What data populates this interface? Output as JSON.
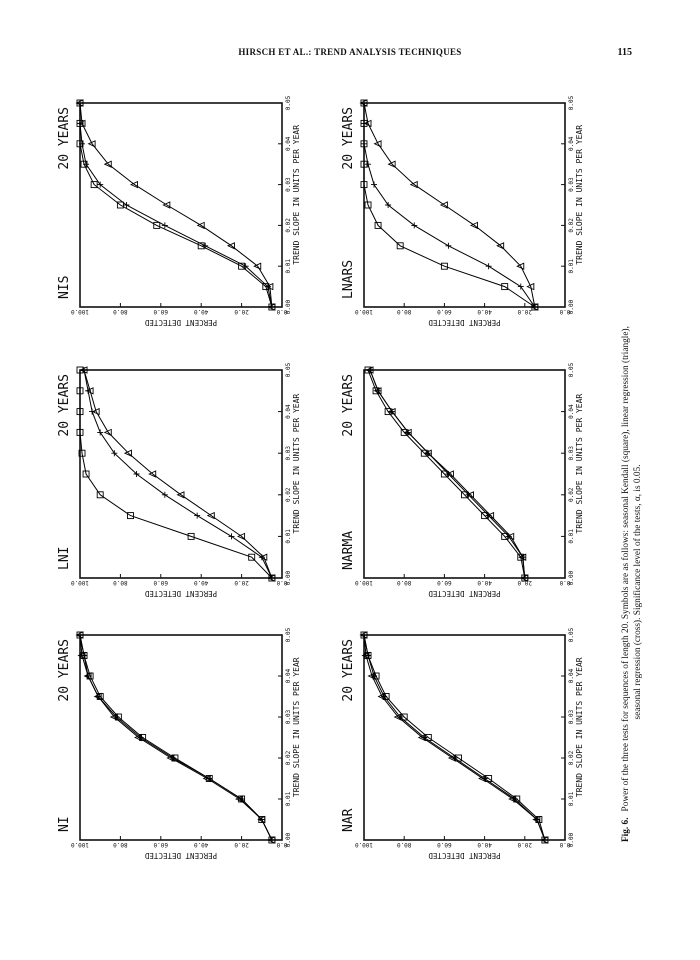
{
  "header": {
    "running_title": "HIRSCH ET AL.: TREND ANALYSIS TECHNIQUES",
    "page_number": "115"
  },
  "caption": {
    "label": "Fig. 6.",
    "lines": [
      "Power of the three tests for sequences of length 20. Symbols are as follows: seasonal Kendall (square), linear regression (triangle),",
      "seasonal regression (cross). Significance level of the tests, α, is 0.05."
    ]
  },
  "chart_data": [
    {
      "type": "line",
      "title": "NIS",
      "subtitle": "20 YEARS",
      "xlabel": "TREND SLOPE IN UNITS PER YEAR",
      "ylabel": "PERCENT DETECTED",
      "x": [
        0,
        0.005,
        0.01,
        0.015,
        0.02,
        0.025,
        0.03,
        0.035,
        0.04,
        0.045,
        0.05
      ],
      "xlim": [
        0,
        0.05
      ],
      "ylim": [
        0,
        100
      ],
      "xticks": [
        {
          "value": 0,
          "label": "0.00"
        },
        0.01,
        0.02,
        0.03,
        0.04,
        0.05
      ],
      "yticks": [
        {
          "value": 0,
          "label": "0.0"
        },
        {
          "value": 20,
          "label": "20.0"
        },
        {
          "value": 40,
          "label": "40.0"
        },
        {
          "value": 60,
          "label": "60.0"
        },
        {
          "value": 80,
          "label": "80.0"
        },
        {
          "value": 100,
          "label": "100.0"
        }
      ],
      "series": [
        {
          "marker": "square",
          "color": "#000000",
          "values": [
            5,
            8,
            20,
            40,
            62,
            80,
            93,
            98,
            100,
            100,
            100
          ]
        },
        {
          "marker": "triangle",
          "color": "#000000",
          "values": [
            5,
            6,
            12,
            25,
            40,
            57,
            73,
            86,
            94,
            99,
            100
          ]
        },
        {
          "marker": "cross",
          "color": "#000000",
          "values": [
            5,
            7,
            18,
            38,
            58,
            77,
            90,
            97,
            99,
            100,
            100
          ]
        }
      ]
    },
    {
      "type": "line",
      "title": "LNARS",
      "subtitle": "20 YEARS",
      "xlabel": "TREND SLOPE IN UNITS PER YEAR",
      "ylabel": "PERCENT DETECTED",
      "x": [
        0,
        0.005,
        0.01,
        0.015,
        0.02,
        0.025,
        0.03,
        0.035,
        0.04,
        0.045,
        0.05
      ],
      "xlim": [
        0,
        0.05
      ],
      "ylim": [
        0,
        100
      ],
      "xticks": [
        {
          "value": 0,
          "label": "0.00"
        },
        0.01,
        0.02,
        0.03,
        0.04,
        0.05
      ],
      "yticks": [
        {
          "value": 0,
          "label": "0.0"
        },
        {
          "value": 20,
          "label": "20.0"
        },
        {
          "value": 40,
          "label": "40.0"
        },
        {
          "value": 60,
          "label": "60.0"
        },
        {
          "value": 80,
          "label": "80.0"
        },
        {
          "value": 100,
          "label": "100.0"
        }
      ],
      "series": [
        {
          "marker": "square",
          "color": "#000000",
          "values": [
            15,
            30,
            60,
            82,
            93,
            98,
            100,
            100,
            100,
            100,
            100
          ]
        },
        {
          "marker": "triangle",
          "color": "#000000",
          "values": [
            15,
            17,
            22,
            32,
            45,
            60,
            75,
            86,
            93,
            98,
            100
          ]
        },
        {
          "marker": "cross",
          "color": "#000000",
          "values": [
            15,
            22,
            38,
            58,
            75,
            88,
            95,
            98,
            100,
            100,
            100
          ]
        }
      ]
    },
    {
      "type": "line",
      "title": "LNI",
      "subtitle": "20 YEARS",
      "xlabel": "TREND SLOPE IN UNITS PER YEAR",
      "ylabel": "PERCENT DETECTED",
      "x": [
        0,
        0.005,
        0.01,
        0.015,
        0.02,
        0.025,
        0.03,
        0.035,
        0.04,
        0.045,
        0.05
      ],
      "xlim": [
        0,
        0.05
      ],
      "ylim": [
        0,
        100
      ],
      "xticks": [
        {
          "value": 0,
          "label": "0.00"
        },
        0.01,
        0.02,
        0.03,
        0.04,
        0.05
      ],
      "yticks": [
        {
          "value": 0,
          "label": "0.0"
        },
        {
          "value": 20,
          "label": "20.0"
        },
        {
          "value": 40,
          "label": "40.0"
        },
        {
          "value": 60,
          "label": "60.0"
        },
        {
          "value": 80,
          "label": "80.0"
        },
        {
          "value": 100,
          "label": "100.0"
        }
      ],
      "series": [
        {
          "marker": "square",
          "color": "#000000",
          "values": [
            5,
            15,
            45,
            75,
            90,
            97,
            99,
            100,
            100,
            100,
            100
          ]
        },
        {
          "marker": "triangle",
          "color": "#000000",
          "values": [
            5,
            9,
            20,
            35,
            50,
            64,
            76,
            86,
            92,
            95,
            98
          ]
        },
        {
          "marker": "cross",
          "color": "#000000",
          "values": [
            5,
            10,
            25,
            42,
            58,
            72,
            83,
            90,
            94,
            96,
            98
          ]
        }
      ]
    },
    {
      "type": "line",
      "title": "NARMA",
      "subtitle": "20 YEARS",
      "xlabel": "TREND SLOPE IN UNITS PER YEAR",
      "ylabel": "PERCENT DETECTED",
      "x": [
        0,
        0.005,
        0.01,
        0.015,
        0.02,
        0.025,
        0.03,
        0.035,
        0.04,
        0.045,
        0.05
      ],
      "xlim": [
        0,
        0.05
      ],
      "ylim": [
        0,
        100
      ],
      "xticks": [
        {
          "value": 0,
          "label": "0.00"
        },
        0.01,
        0.02,
        0.03,
        0.04,
        0.05
      ],
      "yticks": [
        {
          "value": 0,
          "label": "0.0"
        },
        {
          "value": 20,
          "label": "20.0"
        },
        {
          "value": 40,
          "label": "40.0"
        },
        {
          "value": 60,
          "label": "60.0"
        },
        {
          "value": 80,
          "label": "80.0"
        },
        {
          "value": 100,
          "label": "100.0"
        }
      ],
      "series": [
        {
          "marker": "square",
          "color": "#000000",
          "values": [
            20,
            22,
            30,
            40,
            50,
            60,
            70,
            80,
            88,
            94,
            98
          ]
        },
        {
          "marker": "triangle",
          "color": "#000000",
          "values": [
            20,
            21,
            27,
            37,
            47,
            57,
            68,
            78,
            86,
            93,
            97
          ]
        },
        {
          "marker": "cross",
          "color": "#000000",
          "values": [
            20,
            21,
            28,
            38,
            48,
            58,
            68,
            78,
            86,
            93,
            97
          ]
        }
      ]
    },
    {
      "type": "line",
      "title": "NI",
      "subtitle": "20 YEARS",
      "xlabel": "TREND SLOPE IN UNITS PER YEAR",
      "ylabel": "PERCENT DETECTED",
      "x": [
        0,
        0.005,
        0.01,
        0.015,
        0.02,
        0.025,
        0.03,
        0.035,
        0.04,
        0.045,
        0.05
      ],
      "xlim": [
        0,
        0.05
      ],
      "ylim": [
        0,
        100
      ],
      "xticks": [
        {
          "value": 0,
          "label": "0.00"
        },
        0.01,
        0.02,
        0.03,
        0.04,
        0.05
      ],
      "yticks": [
        {
          "value": 0,
          "label": "0.0"
        },
        {
          "value": 20,
          "label": "20.0"
        },
        {
          "value": 40,
          "label": "40.0"
        },
        {
          "value": 60,
          "label": "60.0"
        },
        {
          "value": 80,
          "label": "80.0"
        },
        {
          "value": 100,
          "label": "100.0"
        }
      ],
      "series": [
        {
          "marker": "square",
          "color": "#000000",
          "values": [
            5,
            10,
            20,
            36,
            53,
            69,
            81,
            90,
            95,
            98,
            100
          ]
        },
        {
          "marker": "triangle",
          "color": "#000000",
          "values": [
            5,
            10,
            21,
            37,
            55,
            71,
            83,
            91,
            96,
            99,
            100
          ]
        },
        {
          "marker": "cross",
          "color": "#000000",
          "values": [
            5,
            10,
            20,
            36,
            54,
            70,
            82,
            91,
            96,
            98,
            100
          ]
        }
      ]
    },
    {
      "type": "line",
      "title": "NAR",
      "subtitle": "20 YEARS",
      "xlabel": "TREND SLOPE IN UNITS PER YEAR",
      "ylabel": "PERCENT DETECTED",
      "x": [
        0,
        0.005,
        0.01,
        0.015,
        0.02,
        0.025,
        0.03,
        0.035,
        0.04,
        0.045,
        0.05
      ],
      "xlim": [
        0,
        0.05
      ],
      "ylim": [
        0,
        100
      ],
      "xticks": [
        {
          "value": 0,
          "label": "0.00"
        },
        0.01,
        0.02,
        0.03,
        0.04,
        0.05
      ],
      "yticks": [
        {
          "value": 0,
          "label": "0.0"
        },
        {
          "value": 20,
          "label": "20.0"
        },
        {
          "value": 40,
          "label": "40.0"
        },
        {
          "value": 60,
          "label": "60.0"
        },
        {
          "value": 80,
          "label": "80.0"
        },
        {
          "value": 100,
          "label": "100.0"
        }
      ],
      "series": [
        {
          "marker": "square",
          "color": "#000000",
          "values": [
            10,
            13,
            24,
            38,
            53,
            68,
            80,
            89,
            94,
            98,
            100
          ]
        },
        {
          "marker": "triangle",
          "color": "#000000",
          "values": [
            10,
            14,
            26,
            41,
            56,
            71,
            83,
            91,
            96,
            99,
            100
          ]
        },
        {
          "marker": "cross",
          "color": "#000000",
          "values": [
            10,
            14,
            25,
            40,
            55,
            70,
            82,
            90,
            95,
            98,
            100
          ]
        }
      ]
    }
  ]
}
